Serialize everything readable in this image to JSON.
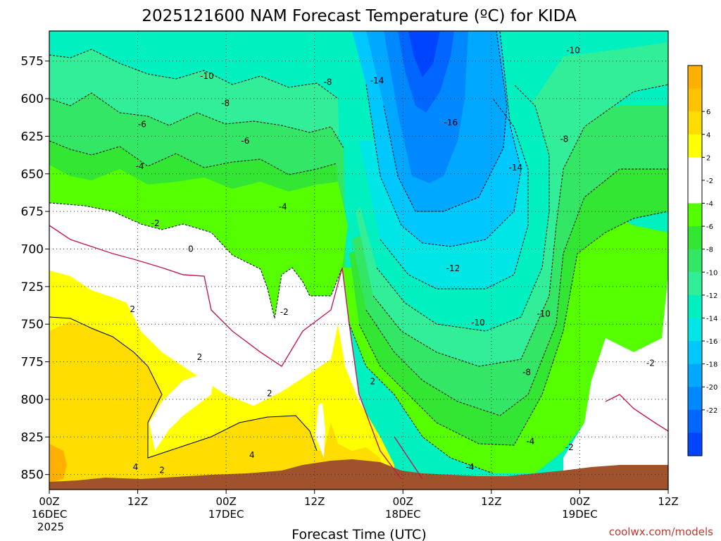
{
  "chart_data": {
    "type": "heatmap",
    "title": "2025121600 NAM Forecast Temperature (ºC) for KIDA",
    "xlabel": "Forecast Time (UTC)",
    "ylabel": "",
    "y_ticks": [
      575,
      600,
      625,
      650,
      675,
      700,
      725,
      750,
      775,
      800,
      825,
      850
    ],
    "y_range": [
      555,
      860
    ],
    "y_inverted": true,
    "x_range_hours": [
      0,
      84
    ],
    "x_ticks": [
      {
        "hour": 0,
        "label": "00Z",
        "sub": "16DEC",
        "sub2": "2025"
      },
      {
        "hour": 12,
        "label": "12Z",
        "sub": "",
        "sub2": ""
      },
      {
        "hour": 24,
        "label": "00Z",
        "sub": "17DEC",
        "sub2": ""
      },
      {
        "hour": 36,
        "label": "12Z",
        "sub": "",
        "sub2": ""
      },
      {
        "hour": 48,
        "label": "00Z",
        "sub": "18DEC",
        "sub2": ""
      },
      {
        "hour": 60,
        "label": "12Z",
        "sub": "",
        "sub2": ""
      },
      {
        "hour": 72,
        "label": "00Z",
        "sub": "19DEC",
        "sub2": ""
      },
      {
        "hour": 84,
        "label": "12Z",
        "sub": "",
        "sub2": ""
      }
    ],
    "grid": true,
    "colorbar": {
      "placement": "right",
      "labels": [
        "6",
        "4",
        "2",
        "-2",
        "-4",
        "-6",
        "-8",
        "-10",
        "-12",
        "-14",
        "-16",
        "-18",
        "-20",
        "-22"
      ],
      "bins": [
        {
          "color": "#ffb000"
        },
        {
          "color": "#ffc400"
        },
        {
          "color": "#ffdd00"
        },
        {
          "color": "#ffff00"
        },
        {
          "color": "#ffffff"
        },
        {
          "color": "#ffffff"
        },
        {
          "color": "#55ff00"
        },
        {
          "color": "#33e633"
        },
        {
          "color": "#33e666"
        },
        {
          "color": "#33ee99"
        },
        {
          "color": "#00f0c0"
        },
        {
          "color": "#00e6e6"
        },
        {
          "color": "#00c8ff"
        },
        {
          "color": "#00a8ff"
        },
        {
          "color": "#0088ff"
        },
        {
          "color": "#0066ff"
        },
        {
          "color": "#0044ff"
        }
      ]
    },
    "contour_labels": [
      {
        "text": "-10",
        "hour": 21.4,
        "hPa": 585
      },
      {
        "text": "-8",
        "hour": 23.9,
        "hPa": 603
      },
      {
        "text": "-6",
        "hour": 12.6,
        "hPa": 617
      },
      {
        "text": "-8",
        "hour": 37.8,
        "hPa": 589
      },
      {
        "text": "-6",
        "hour": 26.6,
        "hPa": 628
      },
      {
        "text": "-4",
        "hour": 12.3,
        "hPa": 645
      },
      {
        "text": "-4",
        "hour": 31.7,
        "hPa": 672
      },
      {
        "text": "-2",
        "hour": 14.4,
        "hPa": 683
      },
      {
        "text": "0",
        "hour": 19.2,
        "hPa": 700
      },
      {
        "text": "2",
        "hour": 11.3,
        "hPa": 740
      },
      {
        "text": "-2",
        "hour": 31.9,
        "hPa": 742
      },
      {
        "text": "2",
        "hour": 20.4,
        "hPa": 772
      },
      {
        "text": "2",
        "hour": 29.9,
        "hPa": 796
      },
      {
        "text": "2",
        "hour": 43.9,
        "hPa": 788
      },
      {
        "text": "4",
        "hour": 27.5,
        "hPa": 837
      },
      {
        "text": "4",
        "hour": 11.7,
        "hPa": 845
      },
      {
        "text": "2",
        "hour": 15.3,
        "hPa": 847
      },
      {
        "text": "-14",
        "hour": 44.5,
        "hPa": 588
      },
      {
        "text": "-16",
        "hour": 54.5,
        "hPa": 616
      },
      {
        "text": "-14",
        "hour": 63.3,
        "hPa": 646
      },
      {
        "text": "-12",
        "hour": 54.8,
        "hPa": 713
      },
      {
        "text": "-10",
        "hour": 58.2,
        "hPa": 749
      },
      {
        "text": "-8",
        "hour": 64.8,
        "hPa": 782
      },
      {
        "text": "-4",
        "hour": 65.3,
        "hPa": 828
      },
      {
        "text": "-4",
        "hour": 57.1,
        "hPa": 845
      },
      {
        "text": "-2",
        "hour": 70.6,
        "hPa": 832
      },
      {
        "text": "-10",
        "hour": 71.1,
        "hPa": 568
      },
      {
        "text": "-8",
        "hour": 69.9,
        "hPa": 627
      },
      {
        "text": "-10",
        "hour": 67.1,
        "hPa": 743
      },
      {
        "text": "-2",
        "hour": 81.6,
        "hPa": 776
      }
    ]
  },
  "credit": "coolwx.com/models"
}
